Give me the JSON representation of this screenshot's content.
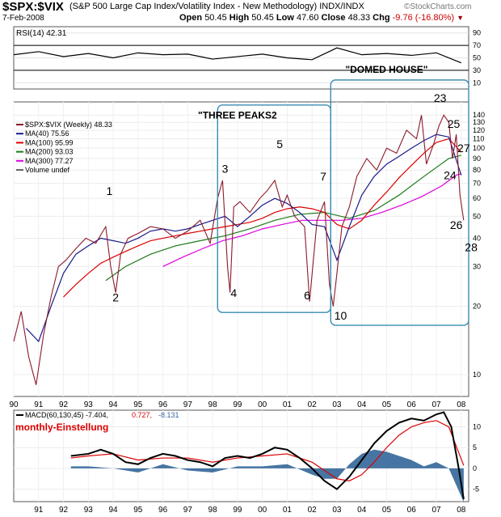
{
  "header": {
    "symbol": "$SPX:$VIX",
    "description": "(S&P 500 Large Cap Index/Volatility Index - New Methodology) INDX/INDX",
    "date": "7-Feb-2008",
    "open_label": "Open",
    "open": "50.45",
    "high_label": "High",
    "high": "50.45",
    "low_label": "Low",
    "low": "47.60",
    "close_label": "Close",
    "close": "48.33",
    "chg_label": "Chg",
    "chg": "-9.76 (-16.80%)",
    "arrow": "▼",
    "logo": "©StockCharts.com"
  },
  "chart_data": [
    {
      "type": "line",
      "panel": "rsi",
      "legend": "RSI(14) 42.31",
      "ylim": [
        0,
        100
      ],
      "y_ticks": [
        10,
        30,
        50,
        70,
        90
      ],
      "reference_lines": [
        30,
        70
      ],
      "x": [
        1990,
        1991,
        1992,
        1993,
        1994,
        1995,
        1996,
        1997,
        1998,
        1999,
        2000,
        2001,
        2002,
        2003,
        2004,
        2005,
        2006,
        2007,
        2008
      ],
      "values": [
        55,
        60,
        52,
        57,
        50,
        58,
        55,
        56,
        48,
        52,
        56,
        50,
        47,
        66,
        55,
        57,
        54,
        58,
        42
      ]
    },
    {
      "type": "line",
      "panel": "price",
      "scale": "log",
      "ylim": [
        8,
        160
      ],
      "y_ticks": [
        10,
        20,
        30,
        40,
        50,
        60,
        70,
        80,
        90,
        100,
        110,
        120,
        130,
        140
      ],
      "x_ticks": [
        "90",
        "91",
        "92",
        "93",
        "94",
        "95",
        "96",
        "97",
        "98",
        "99",
        "00",
        "01",
        "02",
        "03",
        "04",
        "05",
        "06",
        "07",
        "08"
      ],
      "legend": [
        {
          "label": "$SPX:$VIX (Weekly) 48.33",
          "color": "#8b1a2b"
        },
        {
          "label": "MA(40) 75.56",
          "color": "#1a1a8c"
        },
        {
          "label": "MA(100) 95.99",
          "color": "#dd0000"
        },
        {
          "label": "MA(200) 93.03",
          "color": "#1a7a1a"
        },
        {
          "label": "MA(300) 77.27",
          "color": "#dd00dd"
        },
        {
          "label": "Volume undef",
          "color": "#666666"
        }
      ],
      "series": [
        {
          "name": "$SPX:$VIX (Weekly) 48.33",
          "color": "#8b1a2b",
          "x": [
            1990.0,
            1990.3,
            1990.6,
            1990.9,
            1991.2,
            1991.5,
            1991.8,
            1992.1,
            1992.5,
            1992.9,
            1993.3,
            1993.7,
            1993.9,
            1994.1,
            1994.3,
            1994.6,
            1995.0,
            1995.5,
            1996.0,
            1996.5,
            1997.0,
            1997.5,
            1997.9,
            1998.2,
            1998.4,
            1998.6,
            1998.7,
            1998.85,
            1999.1,
            1999.5,
            1999.9,
            2000.2,
            2000.5,
            2000.8,
            2001.0,
            2001.3,
            2001.7,
            2001.9,
            2002.2,
            2002.5,
            2002.7,
            2002.85,
            2003.0,
            2003.2,
            2003.5,
            2003.8,
            2004.2,
            2004.6,
            2005.0,
            2005.4,
            2005.8,
            2006.2,
            2006.4,
            2006.6,
            2006.9,
            2007.1,
            2007.3,
            2007.5,
            2007.65,
            2007.8,
            2007.95,
            2008.1
          ],
          "values": [
            14,
            19,
            12,
            9,
            15,
            22,
            30,
            32,
            36,
            40,
            38,
            45,
            30,
            23,
            34,
            40,
            42,
            45,
            44,
            40,
            43,
            48,
            38,
            60,
            72,
            30,
            23,
            55,
            58,
            52,
            60,
            65,
            72,
            55,
            62,
            50,
            45,
            21,
            48,
            58,
            25,
            20,
            28,
            45,
            55,
            75,
            90,
            80,
            100,
            95,
            120,
            110,
            140,
            85,
            105,
            125,
            140,
            130,
            90,
            115,
            62,
            48
          ]
        },
        {
          "name": "MA(40) 75.56",
          "color": "#1a1a8c",
          "x": [
            1990.5,
            1991.0,
            1991.5,
            1992.0,
            1992.5,
            1993.0,
            1993.5,
            1994.0,
            1994.5,
            1995.0,
            1995.5,
            1996.0,
            1996.5,
            1997.0,
            1997.5,
            1998.0,
            1998.5,
            1999.0,
            1999.5,
            2000.0,
            2000.5,
            2001.0,
            2001.5,
            2002.0,
            2002.5,
            2003.0,
            2003.5,
            2004.0,
            2004.5,
            2005.0,
            2005.5,
            2006.0,
            2006.5,
            2007.0,
            2007.5,
            2008.0
          ],
          "values": [
            16,
            14,
            20,
            28,
            34,
            37,
            40,
            39,
            38,
            40,
            43,
            44,
            43,
            44,
            46,
            48,
            50,
            45,
            50,
            56,
            60,
            57,
            52,
            46,
            45,
            32,
            45,
            62,
            75,
            85,
            92,
            100,
            108,
            115,
            112,
            76
          ]
        },
        {
          "name": "MA(100) 95.99",
          "color": "#dd0000",
          "x": [
            1992.0,
            1992.5,
            1993.0,
            1993.5,
            1994.0,
            1994.5,
            1995.0,
            1995.5,
            1996.0,
            1996.5,
            1997.0,
            1997.5,
            1998.0,
            1998.5,
            1999.0,
            1999.5,
            2000.0,
            2000.5,
            2001.0,
            2001.5,
            2002.0,
            2002.5,
            2003.0,
            2003.5,
            2004.0,
            2004.5,
            2005.0,
            2005.5,
            2006.0,
            2006.5,
            2007.0,
            2007.5,
            2008.0
          ],
          "values": [
            22,
            25,
            28,
            31,
            33,
            35,
            37,
            39,
            40,
            41,
            42,
            43,
            44,
            45,
            46,
            47,
            49,
            52,
            54,
            55,
            54,
            52,
            46,
            44,
            48,
            56,
            64,
            74,
            84,
            95,
            106,
            110,
            96
          ]
        },
        {
          "name": "MA(200) 93.03",
          "color": "#1a7a1a",
          "x": [
            1993.7,
            1994.5,
            1995.5,
            1996.5,
            1997.5,
            1998.5,
            1999.5,
            2000.5,
            2001.5,
            2002.5,
            2003.5,
            2004.5,
            2005.5,
            2006.5,
            2007.5,
            2008.0
          ],
          "values": [
            26,
            30,
            34,
            37,
            39,
            41,
            44,
            48,
            51,
            52,
            49,
            53,
            62,
            75,
            90,
            93
          ]
        },
        {
          "name": "MA(300) 77.27",
          "color": "#dd00dd",
          "x": [
            1996.0,
            1996.8,
            1997.6,
            1998.4,
            1999.2,
            2000.0,
            2000.8,
            2001.6,
            2002.4,
            2003.2,
            2004.0,
            2004.8,
            2005.6,
            2006.4,
            2007.2,
            2007.8,
            2008.0
          ],
          "values": [
            30,
            33,
            36,
            39,
            41,
            44,
            46,
            48,
            48,
            48,
            49,
            52,
            56,
            61,
            68,
            76,
            77
          ]
        }
      ],
      "annotations": [
        {
          "text": "1",
          "x": 1993.85,
          "y": 62
        },
        {
          "text": "2",
          "x": 1994.1,
          "y": 21
        },
        {
          "text": "3",
          "x": 1998.5,
          "y": 78
        },
        {
          "text": "4",
          "x": 1998.85,
          "y": 22
        },
        {
          "text": "5",
          "x": 2000.7,
          "y": 100
        },
        {
          "text": "6",
          "x": 2001.8,
          "y": 21.5
        },
        {
          "text": "7",
          "x": 2002.45,
          "y": 72
        },
        {
          "text": "10",
          "x": 2003.15,
          "y": 17.5
        },
        {
          "text": "23",
          "x": 2007.15,
          "y": 160
        },
        {
          "text": "25",
          "x": 2007.7,
          "y": 123
        },
        {
          "text": "27",
          "x": 2008.1,
          "y": 96
        },
        {
          "text": "24",
          "x": 2007.55,
          "y": 73
        },
        {
          "text": "26",
          "x": 2007.8,
          "y": 44
        },
        {
          "text": "28",
          "x": 2008.4,
          "y": 35
        },
        {
          "text": "\"THREE PEAKS2",
          "x": 1999.0,
          "y": 135
        },
        {
          "text": "\"DOMED HOUSE\"",
          "x": 2005.0,
          "y": 215
        }
      ],
      "boxes": [
        {
          "name": "three-peaks-box",
          "x0": 1998.2,
          "x1": 2002.75,
          "y0": 18.8,
          "y1": 155
        },
        {
          "name": "domed-house-box",
          "x0": 2002.75,
          "x1": 2008.3,
          "y0": 16.5,
          "y1": 200
        }
      ]
    },
    {
      "type": "line",
      "panel": "macd",
      "legend_prefix": "MACD(60,130,45)",
      "macd_value": "-7.404",
      "signal_value": "0.727",
      "hist_value": "-8.131",
      "annotation": "monthly-Einstellung",
      "ylim": [
        -8,
        14
      ],
      "y_ticks": [
        -5,
        0,
        5,
        10
      ],
      "x_ticks": [
        "91",
        "92",
        "93",
        "94",
        "95",
        "96",
        "97",
        "98",
        "99",
        "00",
        "01",
        "02",
        "03",
        "04",
        "05",
        "06",
        "07",
        "08"
      ],
      "series": [
        {
          "name": "MACD",
          "color": "#000000",
          "x": [
            1992.3,
            1993.0,
            1993.5,
            1994.0,
            1994.5,
            1995.0,
            1995.5,
            1996.0,
            1996.5,
            1997.0,
            1997.5,
            1998.0,
            1998.5,
            1999.0,
            1999.5,
            2000.0,
            2000.5,
            2001.0,
            2001.5,
            2002.0,
            2002.5,
            2003.0,
            2003.5,
            2004.0,
            2004.5,
            2005.0,
            2005.5,
            2006.0,
            2006.5,
            2007.0,
            2007.3,
            2007.6,
            2007.9,
            2008.1
          ],
          "values": [
            3,
            3.5,
            4.5,
            3.5,
            1.5,
            1,
            2.5,
            3.5,
            3,
            2,
            1.5,
            0.5,
            2.5,
            3,
            2.5,
            3.5,
            5,
            4.5,
            2.5,
            0,
            -3,
            -5,
            -2,
            2,
            6,
            9,
            11,
            12,
            11.5,
            13,
            13.5,
            10,
            0,
            -7.4
          ]
        },
        {
          "name": "Signal",
          "color": "#dd0000",
          "x": [
            1992.3,
            1993.0,
            1994.0,
            1995.0,
            1996.0,
            1997.0,
            1998.0,
            1999.0,
            2000.0,
            2001.0,
            2002.0,
            2002.5,
            2003.0,
            2003.5,
            2004.0,
            2004.5,
            2005.0,
            2005.5,
            2006.0,
            2006.5,
            2007.0,
            2007.5,
            2008.1
          ],
          "values": [
            2.5,
            3,
            3.5,
            2,
            2.5,
            2.5,
            1.5,
            2.5,
            3,
            3.5,
            1.5,
            -0.5,
            -2.5,
            -3,
            -1.5,
            1.5,
            5,
            8,
            10,
            11,
            11.5,
            10,
            0.7
          ]
        },
        {
          "name": "Histogram",
          "color": "#336699",
          "x": [
            1992.3,
            1993.0,
            1994.0,
            1995.0,
            1996.0,
            1997.0,
            1998.0,
            1999.0,
            2000.0,
            2001.0,
            2002.0,
            2002.5,
            2003.0,
            2003.5,
            2004.0,
            2004.5,
            2005.0,
            2005.5,
            2006.0,
            2006.5,
            2007.0,
            2007.5,
            2008.1
          ],
          "values": [
            0.5,
            0.5,
            0,
            -1,
            1,
            -0.5,
            -1,
            0.5,
            0.5,
            1,
            -1.5,
            -2.5,
            -2.5,
            1,
            3.5,
            4.5,
            4,
            3,
            2,
            0.5,
            1.5,
            0,
            -8.1
          ]
        }
      ]
    }
  ]
}
